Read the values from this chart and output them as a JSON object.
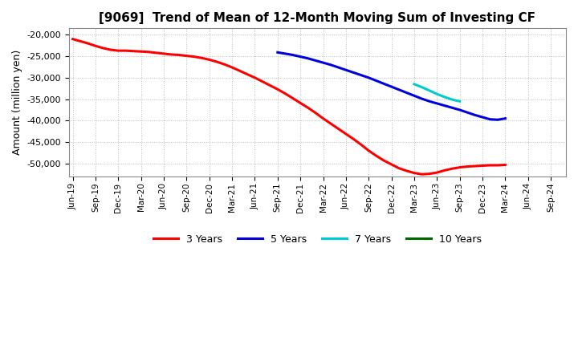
{
  "title": "[9069]  Trend of Mean of 12-Month Moving Sum of Investing CF",
  "ylabel": "Amount (million yen)",
  "background_color": "#ffffff",
  "plot_bg_color": "#ffffff",
  "grid_color": "#bbbbbb",
  "ylim": [
    -53000,
    -18500
  ],
  "yticks": [
    -50000,
    -45000,
    -40000,
    -35000,
    -30000,
    -25000,
    -20000
  ],
  "series": {
    "3yr": {
      "color": "#ff0000",
      "label": "3 Years",
      "x": [
        0,
        1,
        2,
        3,
        4,
        5,
        6,
        7,
        8,
        9,
        10,
        11,
        12,
        13,
        14,
        15,
        16,
        17,
        18,
        19,
        20,
        21,
        22,
        23,
        24,
        25,
        26,
        27,
        28,
        29,
        30,
        31,
        32,
        33,
        34,
        35,
        36,
        37,
        38,
        39,
        40,
        41,
        42,
        43,
        44,
        45,
        46,
        47,
        48,
        49,
        50,
        51,
        52,
        53,
        54,
        55,
        56,
        57
      ],
      "y": [
        -21000,
        -21500,
        -22000,
        -22600,
        -23100,
        -23500,
        -23700,
        -23700,
        -23800,
        -23900,
        -24000,
        -24200,
        -24400,
        -24600,
        -24700,
        -24900,
        -25100,
        -25400,
        -25800,
        -26300,
        -26900,
        -27600,
        -28400,
        -29200,
        -30000,
        -30900,
        -31800,
        -32700,
        -33700,
        -34800,
        -35900,
        -37000,
        -38200,
        -39500,
        -40700,
        -41900,
        -43100,
        -44300,
        -45600,
        -47000,
        -48200,
        -49300,
        -50200,
        -51100,
        -51700,
        -52200,
        -52500,
        -52400,
        -52100,
        -51600,
        -51200,
        -50900,
        -50700,
        -50600,
        -50500,
        -50400,
        -50400,
        -50300
      ]
    },
    "5yr": {
      "color": "#0000dd",
      "label": "5 Years",
      "x": [
        27,
        28,
        29,
        30,
        31,
        32,
        33,
        34,
        35,
        36,
        37,
        38,
        39,
        40,
        41,
        42,
        43,
        44,
        45,
        46,
        47,
        48,
        49,
        50,
        51,
        52,
        53,
        54,
        55,
        56,
        57
      ],
      "y": [
        -24100,
        -24400,
        -24700,
        -25100,
        -25500,
        -26000,
        -26500,
        -27000,
        -27600,
        -28200,
        -28800,
        -29400,
        -30000,
        -30700,
        -31400,
        -32100,
        -32800,
        -33500,
        -34200,
        -34900,
        -35500,
        -36000,
        -36500,
        -37000,
        -37500,
        -38100,
        -38700,
        -39200,
        -39700,
        -39800,
        -39500
      ]
    },
    "7yr": {
      "color": "#00cccc",
      "label": "7 Years",
      "x": [
        45,
        46,
        47,
        48,
        49,
        50,
        51
      ],
      "y": [
        -31500,
        -32200,
        -33000,
        -33800,
        -34500,
        -35100,
        -35500
      ]
    },
    "10yr": {
      "color": "#006600",
      "label": "10 Years",
      "x": [],
      "y": []
    }
  },
  "xtick_labels": [
    "Jun-19",
    "Sep-19",
    "Dec-19",
    "Mar-20",
    "Jun-20",
    "Sep-20",
    "Dec-20",
    "Mar-21",
    "Jun-21",
    "Sep-21",
    "Dec-21",
    "Mar-22",
    "Jun-22",
    "Sep-22",
    "Dec-22",
    "Mar-23",
    "Jun-23",
    "Sep-23",
    "Dec-23",
    "Mar-24",
    "Jun-24",
    "Sep-24"
  ],
  "xtick_positions": [
    0,
    3,
    6,
    9,
    12,
    15,
    18,
    21,
    24,
    27,
    30,
    33,
    36,
    39,
    42,
    45,
    48,
    51,
    54,
    57,
    60,
    63
  ],
  "xlim": [
    -0.5,
    65
  ]
}
